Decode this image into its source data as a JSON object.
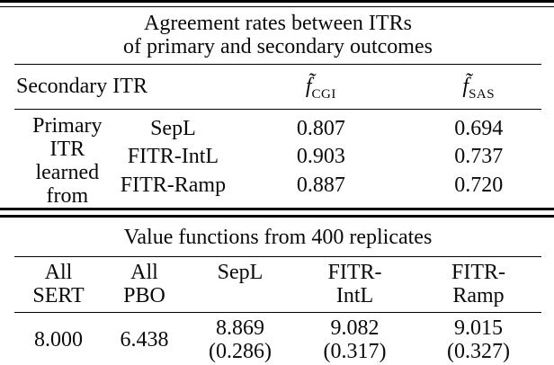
{
  "page": {
    "background": "#ffffff",
    "text_color": "#000000",
    "rule_color": "#000000"
  },
  "table1": {
    "title_line1": "Agreement rates between ITRs",
    "title_line2": "of primary and secondary outcomes",
    "header": {
      "secondary_itr": "Secondary ITR",
      "f_cgi": {
        "symbol": "f̃",
        "subscript": "CGI"
      },
      "f_sas": {
        "symbol": "f̃",
        "subscript": "SAS"
      }
    },
    "row_group_label_line1": "Primary ITR",
    "row_group_label_line2": "learned from",
    "rows": [
      {
        "method": "SepL",
        "f_cgi": "0.807",
        "f_sas": "0.694"
      },
      {
        "method": "FITR-IntL",
        "f_cgi": "0.903",
        "f_sas": "0.737"
      },
      {
        "method": "FITR-Ramp",
        "f_cgi": "0.887",
        "f_sas": "0.720"
      }
    ]
  },
  "table2": {
    "title": "Value functions from 400 replicates",
    "headers": [
      {
        "line1": "All",
        "line2": "SERT"
      },
      {
        "line1": "All",
        "line2": "PBO"
      },
      {
        "line1": "SepL",
        "line2": ""
      },
      {
        "line1": "FITR-",
        "line2": "IntL"
      },
      {
        "line1": "FITR-",
        "line2": "Ramp"
      }
    ],
    "values": [
      {
        "value": "8.000",
        "se": ""
      },
      {
        "value": "6.438",
        "se": ""
      },
      {
        "value": "8.869",
        "se": "(0.286)"
      },
      {
        "value": "9.082",
        "se": "(0.317)"
      },
      {
        "value": "9.015",
        "se": "(0.327)"
      }
    ]
  }
}
